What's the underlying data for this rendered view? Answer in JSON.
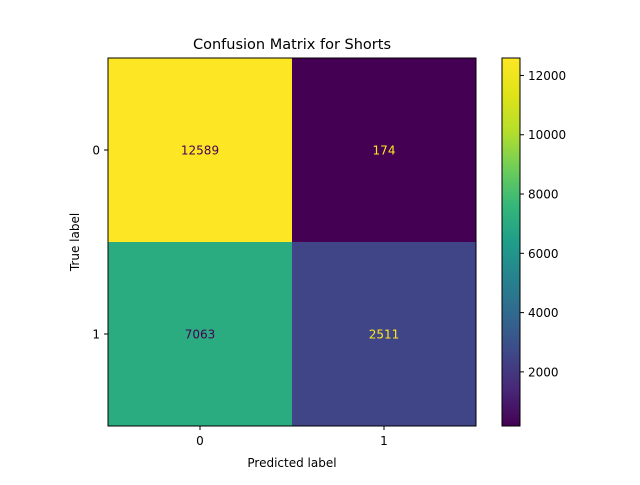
{
  "chart_data": {
    "type": "heatmap",
    "title": "Confusion Matrix for Shorts",
    "xlabel": "Predicted label",
    "ylabel": "True label",
    "x_categories": [
      "0",
      "1"
    ],
    "y_categories": [
      "0",
      "1"
    ],
    "values": [
      [
        12589,
        174
      ],
      [
        7063,
        2511
      ]
    ],
    "colormap": "viridis",
    "colorbar": {
      "ticks": [
        2000,
        4000,
        6000,
        8000,
        10000,
        12000
      ],
      "tick_labels": [
        "2000",
        "4000",
        "6000",
        "8000",
        "10000",
        "12000"
      ]
    },
    "value_text_colors": {
      "on_light": "#440154",
      "on_dark": "#fde725"
    },
    "grid": false
  }
}
